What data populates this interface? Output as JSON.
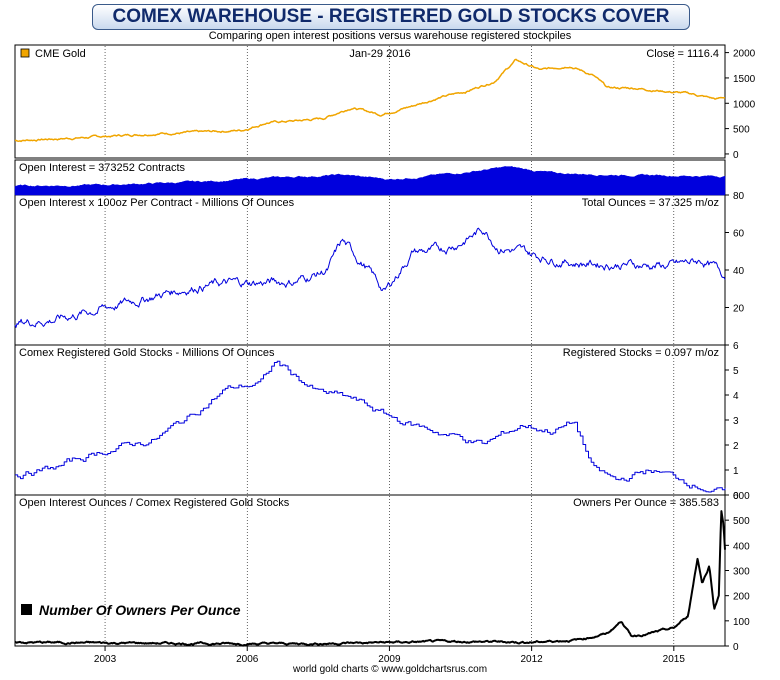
{
  "title": "COMEX WAREHOUSE - REGISTERED GOLD STOCKS COVER",
  "subtitle": "Comparing open interest positions versus warehouse registered stockpiles",
  "footer": "world gold charts © www.goldchartsrus.com",
  "colors": {
    "gold": "#f0a500",
    "blue": "#0000dd",
    "black": "#000000",
    "accent": "#102a6b"
  },
  "chart_data": [
    {
      "type": "line",
      "legend": "CME Gold",
      "date_label": "Jan-29  2016",
      "readout": "Close = 1116.4",
      "x_axis": {
        "ticks": [
          2003,
          2006,
          2009,
          2012,
          2015
        ],
        "range": [
          2001.1,
          2016.08
        ]
      },
      "ylim": [
        -80,
        2150
      ],
      "y_ticks": [
        0,
        500,
        1000,
        1500,
        2000
      ],
      "series": [
        {
          "name": "CME Gold",
          "x": [
            2001.1,
            2002.0,
            2003.0,
            2004.0,
            2005.0,
            2005.9,
            2006.4,
            2007.0,
            2007.6,
            2008.2,
            2008.8,
            2009.5,
            2010.0,
            2010.6,
            2011.2,
            2011.67,
            2012.2,
            2012.8,
            2013.3,
            2013.6,
            2014.2,
            2014.8,
            2015.4,
            2015.9,
            2016.08
          ],
          "values": [
            265,
            300,
            345,
            405,
            425,
            470,
            620,
            650,
            700,
            920,
            780,
            950,
            1100,
            1230,
            1430,
            1850,
            1650,
            1750,
            1550,
            1300,
            1300,
            1240,
            1180,
            1080,
            1116
          ]
        }
      ]
    },
    {
      "type": "area",
      "label": "Open Interest = 373252 Contracts",
      "x_axis": {
        "range": [
          2001.1,
          2016.08
        ]
      },
      "ylim": [
        0,
        700000
      ],
      "series": [
        {
          "name": "Open Interest",
          "x": [
            2001.1,
            2003.0,
            2005.0,
            2006.5,
            2008.0,
            2009.0,
            2010.5,
            2011.5,
            2012.5,
            2014.0,
            2016.08
          ],
          "values": [
            180000,
            200000,
            260000,
            340000,
            400000,
            310000,
            440000,
            560000,
            430000,
            400000,
            373252
          ]
        }
      ]
    },
    {
      "type": "line",
      "label": "Open Interest x 100oz Per Contract - Millions Of Ounces",
      "readout": "Total Ounces = 37.325 m/oz",
      "x_axis": {
        "range": [
          2001.1,
          2016.08
        ]
      },
      "ylim": [
        0,
        80
      ],
      "y_ticks": [
        20,
        40,
        60,
        80
      ],
      "series": [
        {
          "name": "Total Ounces",
          "x": [
            2001.1,
            2002.0,
            2003.0,
            2004.0,
            2005.0,
            2006.0,
            2007.0,
            2007.7,
            2008.0,
            2008.5,
            2008.9,
            2009.5,
            2010.0,
            2010.5,
            2011.0,
            2011.3,
            2012.0,
            2013.0,
            2014.0,
            2015.0,
            2015.6,
            2016.08
          ],
          "values": [
            12,
            14,
            20,
            26,
            32,
            33,
            34,
            40,
            55,
            42,
            28,
            50,
            50,
            55,
            62,
            53,
            48,
            44,
            43,
            42,
            45,
            37.3
          ]
        }
      ]
    },
    {
      "type": "line",
      "label": "Comex Registered Gold Stocks - Millions Of Ounces",
      "readout": "Registered Stocks = 0.097 m/oz",
      "x_axis": {
        "range": [
          2001.1,
          2016.08
        ]
      },
      "ylim": [
        0,
        6
      ],
      "y_ticks": [
        0,
        1,
        2,
        3,
        4,
        5,
        6
      ],
      "series": [
        {
          "name": "Registered Stocks",
          "x": [
            2001.1,
            2002.0,
            2003.0,
            2004.0,
            2004.7,
            2005.5,
            2006.3,
            2006.6,
            2007.5,
            2008.2,
            2009.0,
            2009.5,
            2010.5,
            2011.0,
            2011.8,
            2012.4,
            2012.9,
            2013.3,
            2013.8,
            2014.2,
            2014.5,
            2015.0,
            2015.6,
            2016.08
          ],
          "values": [
            0.8,
            1.1,
            1.8,
            2.2,
            3.0,
            4.2,
            4.5,
            5.3,
            4.1,
            3.8,
            3.1,
            2.8,
            2.3,
            2.0,
            2.8,
            2.6,
            2.9,
            1.0,
            0.5,
            0.8,
            1.0,
            0.7,
            0.4,
            0.1
          ]
        }
      ]
    },
    {
      "type": "line",
      "label": "Open Interest Ounces / Comex Registered Gold Stocks",
      "readout": "Owners Per Ounce = 385.583",
      "legend": "Number Of Owners Per Ounce",
      "x_axis": {
        "range": [
          2001.1,
          2016.08
        ]
      },
      "ylim": [
        0,
        600
      ],
      "y_ticks": [
        0,
        100,
        200,
        300,
        400,
        500,
        600
      ],
      "series": [
        {
          "name": "Owners Per Ounce",
          "x": [
            2001.1,
            2003.0,
            2005.0,
            2007.0,
            2009.0,
            2010.5,
            2012.0,
            2013.0,
            2013.6,
            2013.9,
            2014.1,
            2014.5,
            2015.0,
            2015.3,
            2015.5,
            2015.6,
            2015.75,
            2015.85,
            2015.95,
            2016.0,
            2016.05,
            2016.08
          ],
          "values": [
            15,
            12,
            10,
            9,
            14,
            18,
            15,
            25,
            50,
            100,
            40,
            50,
            70,
            120,
            350,
            250,
            320,
            150,
            200,
            540,
            480,
            385.6
          ]
        }
      ]
    }
  ]
}
